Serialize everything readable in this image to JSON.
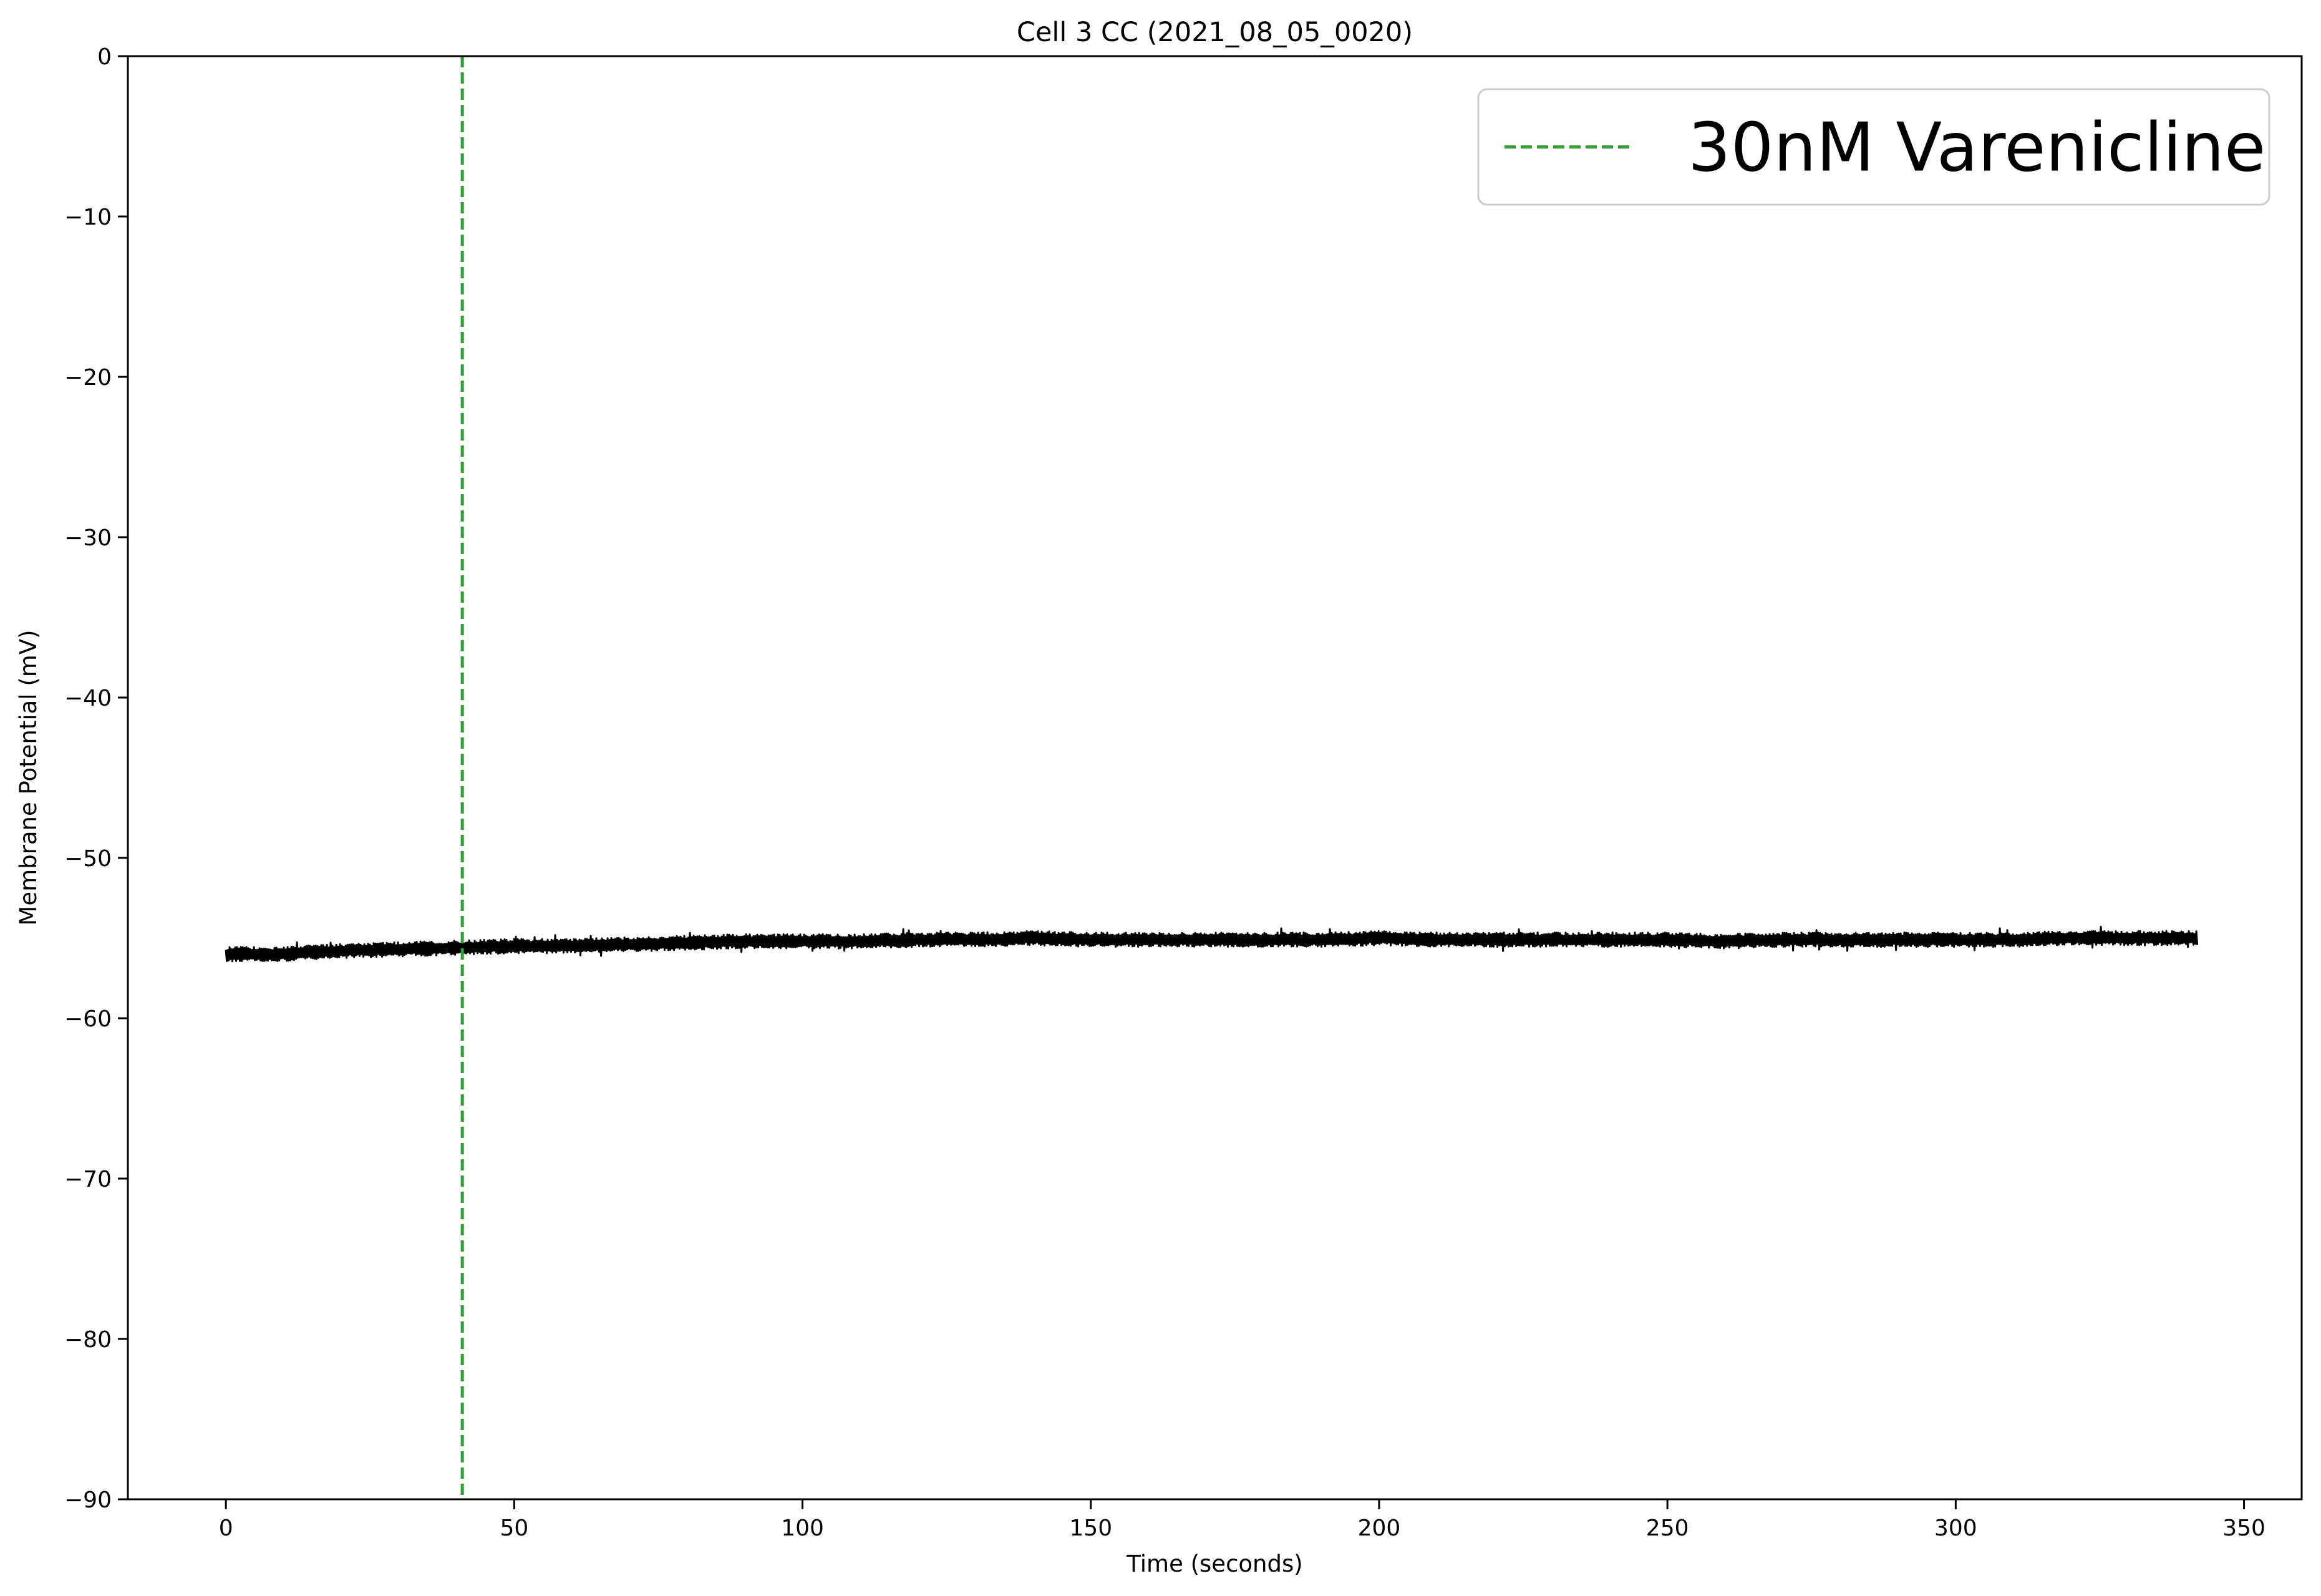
{
  "chart_data": {
    "type": "line",
    "title": "Cell 3 CC (2021_08_05_0020)",
    "xlabel": "Time (seconds)",
    "ylabel": "Membrane Potential (mV)",
    "xlim": [
      -17,
      360
    ],
    "ylim": [
      -90,
      0
    ],
    "x_ticks": [
      0,
      50,
      100,
      150,
      200,
      250,
      300,
      350
    ],
    "x_tick_labels": [
      "0",
      "50",
      "100",
      "150",
      "200",
      "250",
      "300",
      "350"
    ],
    "y_ticks": [
      0,
      -10,
      -20,
      -30,
      -40,
      -50,
      -60,
      -70,
      -80,
      -90
    ],
    "y_tick_labels": [
      "0",
      "−10",
      "−20",
      "−30",
      "−40",
      "−50",
      "−60",
      "−70",
      "−80",
      "−90"
    ],
    "grid": false,
    "legend_position": "top-right",
    "series": [
      {
        "color": "#000000",
        "x": [
          0,
          10,
          20,
          30,
          40,
          50,
          60,
          70,
          80,
          90,
          100,
          110,
          120,
          130,
          140,
          150,
          160,
          170,
          180,
          190,
          200,
          210,
          220,
          230,
          240,
          250,
          260,
          270,
          280,
          290,
          300,
          310,
          320,
          330,
          342
        ],
        "y": [
          -56.0,
          -56.0,
          -55.8,
          -55.7,
          -55.6,
          -55.5,
          -55.5,
          -55.4,
          -55.3,
          -55.2,
          -55.2,
          -55.2,
          -55.1,
          -55.1,
          -55.0,
          -55.1,
          -55.1,
          -55.1,
          -55.1,
          -55.1,
          -55.0,
          -55.1,
          -55.1,
          -55.1,
          -55.1,
          -55.1,
          -55.2,
          -55.1,
          -55.1,
          -55.1,
          -55.1,
          -55.1,
          -55.0,
          -55.0,
          -55.0
        ],
        "noise_band_mv": 0.9
      }
    ],
    "reference_lines": [
      {
        "orientation": "vertical",
        "x": 41,
        "label": "30nM Varenicline",
        "color": "#2ca02c",
        "style": "dashed"
      }
    ]
  }
}
